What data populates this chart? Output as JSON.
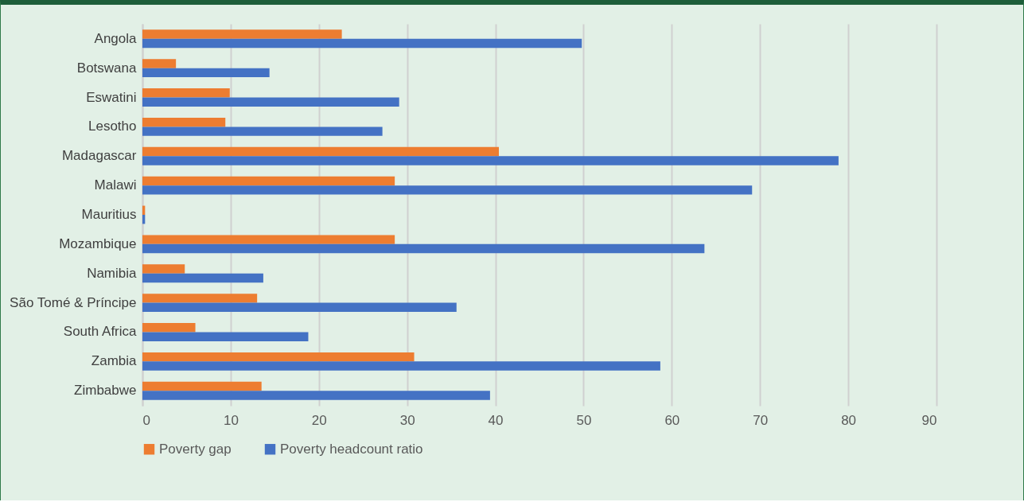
{
  "chart_data": {
    "type": "bar",
    "orientation": "horizontal",
    "categories": [
      "Angola",
      "Botswana",
      "Eswatini",
      "Lesotho",
      "Madagascar",
      "Malawi",
      "Mauritius",
      "Mozambique",
      "Namibia",
      "São Tomé & Príncipe",
      "South Africa",
      "Zambia",
      "Zimbabwe"
    ],
    "series": [
      {
        "name": "Poverty gap",
        "color": "#ed7d31",
        "values": [
          22.6,
          3.8,
          9.9,
          9.4,
          40.4,
          28.6,
          0.3,
          28.6,
          4.8,
          13.0,
          6.0,
          30.8,
          13.5
        ]
      },
      {
        "name": "Poverty headcount ratio",
        "color": "#4472c4",
        "values": [
          49.8,
          14.4,
          29.1,
          27.2,
          78.9,
          69.1,
          0.3,
          63.7,
          13.7,
          35.6,
          18.8,
          58.7,
          39.4
        ]
      }
    ],
    "xlim": [
      0,
      90
    ],
    "xticks": [
      0,
      10,
      20,
      30,
      40,
      50,
      60,
      70,
      80,
      90
    ],
    "grid": "x",
    "legend": "bottom"
  }
}
